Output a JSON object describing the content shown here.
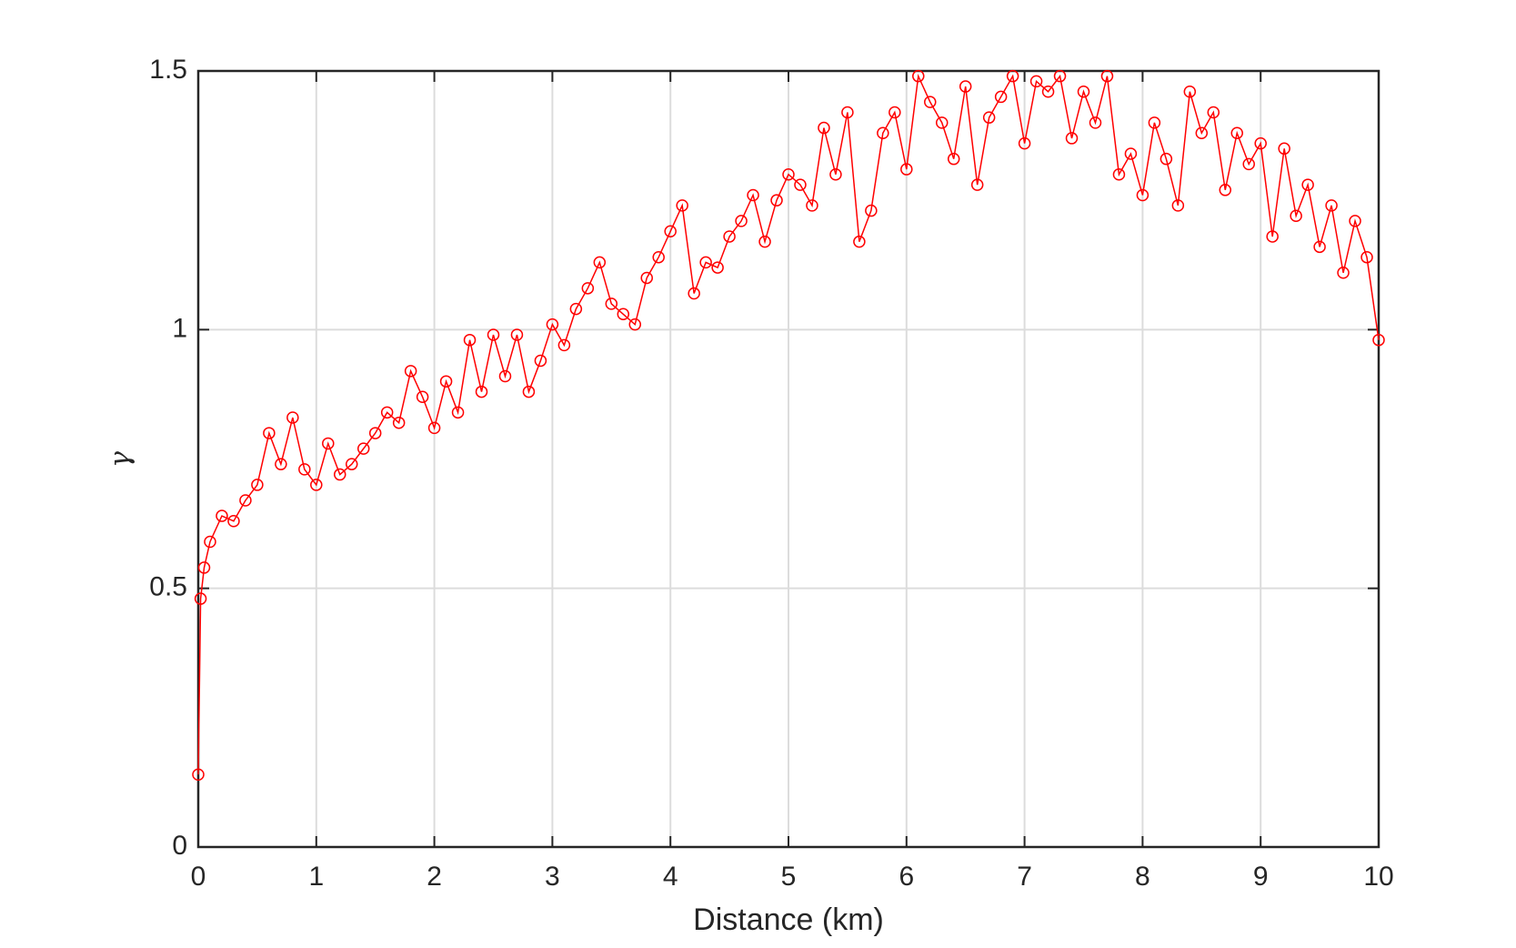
{
  "chart_data": {
    "type": "line",
    "xlabel": "Distance (km)",
    "ylabel": "γ",
    "x": [
      0,
      0.02,
      0.05,
      0.1,
      0.2,
      0.3,
      0.4,
      0.5,
      0.6,
      0.7,
      0.8,
      0.9,
      1.0,
      1.1,
      1.2,
      1.3,
      1.4,
      1.5,
      1.6,
      1.7,
      1.8,
      1.9,
      2.0,
      2.1,
      2.2,
      2.3,
      2.4,
      2.5,
      2.6,
      2.7,
      2.8,
      2.9,
      3.0,
      3.1,
      3.2,
      3.3,
      3.4,
      3.5,
      3.6,
      3.7,
      3.8,
      3.9,
      4.0,
      4.1,
      4.2,
      4.3,
      4.4,
      4.5,
      4.6,
      4.7,
      4.8,
      4.9,
      5.0,
      5.1,
      5.2,
      5.3,
      5.4,
      5.5,
      5.6,
      5.7,
      5.8,
      5.9,
      6.0,
      6.1,
      6.2,
      6.3,
      6.4,
      6.5,
      6.6,
      6.7,
      6.8,
      6.9,
      7.0,
      7.1,
      7.2,
      7.3,
      7.4,
      7.5,
      7.6,
      7.7,
      7.8,
      7.9,
      8.0,
      8.1,
      8.2,
      8.3,
      8.4,
      8.5,
      8.6,
      8.7,
      8.8,
      8.9,
      9.0,
      9.1,
      9.2,
      9.3,
      9.4,
      9.5,
      9.6,
      9.7,
      9.8,
      9.9,
      10.0
    ],
    "series": [
      {
        "color": "#ff0000",
        "values": [
          0.14,
          0.48,
          0.54,
          0.59,
          0.64,
          0.63,
          0.67,
          0.7,
          0.8,
          0.74,
          0.83,
          0.73,
          0.7,
          0.78,
          0.72,
          0.74,
          0.77,
          0.8,
          0.84,
          0.82,
          0.92,
          0.87,
          0.81,
          0.9,
          0.84,
          0.98,
          0.88,
          0.99,
          0.91,
          0.99,
          0.88,
          0.94,
          1.01,
          0.97,
          1.04,
          1.08,
          1.13,
          1.05,
          1.03,
          1.01,
          1.1,
          1.14,
          1.19,
          1.24,
          1.07,
          1.13,
          1.12,
          1.18,
          1.21,
          1.26,
          1.17,
          1.25,
          1.3,
          1.28,
          1.24,
          1.39,
          1.3,
          1.42,
          1.17,
          1.23,
          1.38,
          1.42,
          1.31,
          1.49,
          1.44,
          1.4,
          1.33,
          1.47,
          1.28,
          1.41,
          1.45,
          1.49,
          1.36,
          1.48,
          1.46,
          1.49,
          1.37,
          1.46,
          1.4,
          1.49,
          1.3,
          1.34,
          1.26,
          1.4,
          1.33,
          1.24,
          1.46,
          1.38,
          1.42,
          1.27,
          1.38,
          1.32,
          1.36,
          1.18,
          1.35,
          1.22,
          1.28,
          1.16,
          1.24,
          1.11,
          1.21,
          1.14,
          0.98
        ]
      }
    ],
    "xlim": [
      0,
      10
    ],
    "xticks": [
      0,
      1,
      2,
      3,
      4,
      5,
      6,
      7,
      8,
      9,
      10
    ],
    "ylim": [
      0,
      1.5
    ],
    "yticks": [
      0,
      0.5,
      1,
      1.5
    ],
    "grid": true,
    "markers": true
  }
}
